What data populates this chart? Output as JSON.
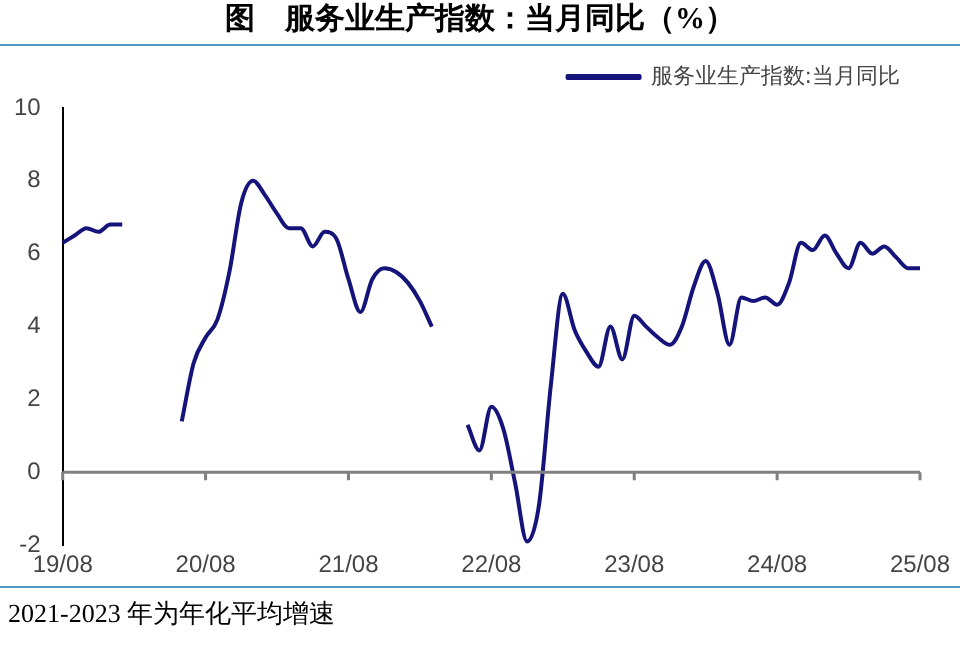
{
  "chart_data": {
    "type": "line",
    "title": "图　服务业生产指数：当月同比（%）",
    "categories": [
      "19/08",
      null,
      null,
      null,
      null,
      null,
      null,
      null,
      null,
      null,
      null,
      null,
      "20/08",
      null,
      null,
      null,
      null,
      null,
      null,
      null,
      null,
      null,
      null,
      null,
      "21/08",
      null,
      null,
      null,
      null,
      null,
      null,
      null,
      null,
      null,
      null,
      null,
      "22/08",
      null,
      null,
      null,
      null,
      null,
      null,
      null,
      null,
      null,
      null,
      null,
      "23/08",
      null,
      null,
      null,
      null,
      null,
      null,
      null,
      null,
      null,
      null,
      null,
      "24/08",
      null,
      null,
      null,
      null,
      null,
      null,
      null,
      null,
      null,
      null,
      null,
      "25/08"
    ],
    "series": [
      {
        "name": "服务业生产指数:当月同比",
        "color": "#14147a",
        "values": [
          6.3,
          6.5,
          6.7,
          6.6,
          6.8,
          6.8,
          null,
          null,
          null,
          null,
          1.4,
          3.0,
          3.7,
          4.2,
          5.5,
          7.4,
          8.0,
          7.6,
          7.1,
          6.7,
          6.7,
          6.2,
          6.6,
          6.4,
          5.3,
          4.4,
          5.3,
          5.6,
          5.5,
          5.2,
          4.7,
          4.0,
          null,
          null,
          1.3,
          0.6,
          1.8,
          1.2,
          -0.3,
          -1.9,
          -0.9,
          2.4,
          4.9,
          3.9,
          3.3,
          2.9,
          4.0,
          3.1,
          4.3,
          4.0,
          3.7,
          3.5,
          4.0,
          5.1,
          5.8,
          4.9,
          3.5,
          4.8,
          4.7,
          4.8,
          4.6,
          5.2,
          6.3,
          6.1,
          6.5,
          6.0,
          5.6,
          6.3,
          6.0,
          6.2,
          5.9,
          5.6,
          5.6
        ]
      }
    ],
    "ylim": [
      -2,
      10
    ],
    "yticks": [
      -2,
      0,
      2,
      4,
      6,
      8,
      10
    ],
    "grid": false,
    "legend": "top right",
    "marker": "none",
    "line_style": "solid",
    "ref_lines": [
      {
        "axis": "y",
        "value": 0,
        "color": "#808080"
      }
    ],
    "annotations": [
      "2021-2023 年为年化平均增速"
    ]
  }
}
